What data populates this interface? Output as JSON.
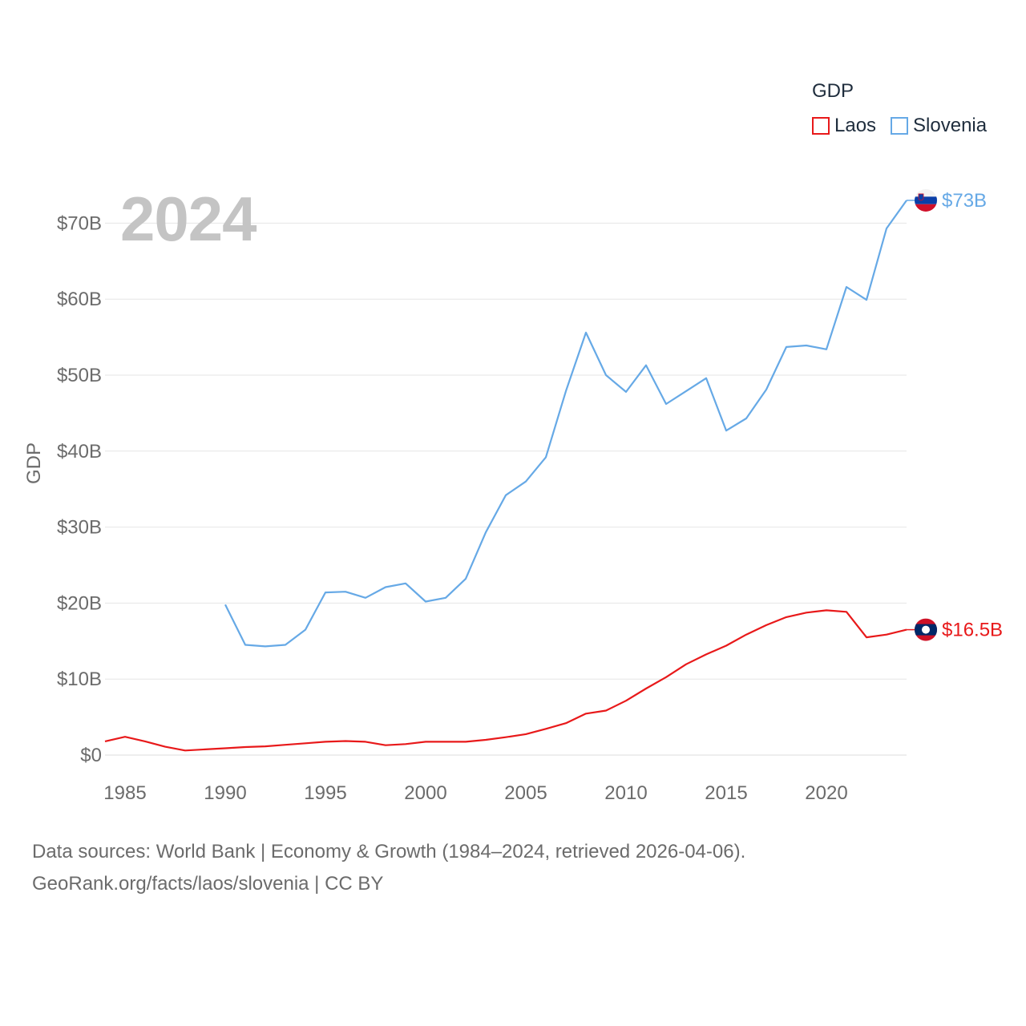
{
  "chart_data": {
    "type": "line",
    "xlabel": "",
    "ylabel": "GDP",
    "xlim": [
      1984,
      2024
    ],
    "ylim": [
      0,
      75
    ],
    "y_unit": "billion USD",
    "x_ticks": [
      1985,
      1990,
      1995,
      2000,
      2005,
      2010,
      2015,
      2020
    ],
    "y_ticks": [
      0,
      10,
      20,
      30,
      40,
      50,
      60,
      70
    ],
    "y_tick_labels": [
      "$0",
      "$10B",
      "$20B",
      "$30B",
      "$40B",
      "$50B",
      "$60B",
      "$70B"
    ],
    "legend_title": "GDP",
    "legend_position": "top-right",
    "grid": true,
    "current_year_label": "2024",
    "series": [
      {
        "name": "Laos",
        "color": "#e8191a",
        "end_label": "$16.5B",
        "x": [
          1984,
          1985,
          1986,
          1987,
          1988,
          1989,
          1990,
          1991,
          1992,
          1993,
          1994,
          1995,
          1996,
          1997,
          1998,
          1999,
          2000,
          2001,
          2002,
          2003,
          2004,
          2005,
          2006,
          2007,
          2008,
          2009,
          2010,
          2011,
          2012,
          2013,
          2014,
          2015,
          2016,
          2017,
          2018,
          2019,
          2020,
          2021,
          2022,
          2023,
          2024
        ],
        "values": [
          1.8,
          2.4,
          1.8,
          1.1,
          0.6,
          0.75,
          0.9,
          1.05,
          1.15,
          1.35,
          1.55,
          1.75,
          1.85,
          1.75,
          1.3,
          1.45,
          1.75,
          1.75,
          1.75,
          2.0,
          2.35,
          2.75,
          3.45,
          4.2,
          5.45,
          5.85,
          7.15,
          8.75,
          10.25,
          11.95,
          13.25,
          14.4,
          15.85,
          17.1,
          18.15,
          18.75,
          19.05,
          18.85,
          15.5,
          15.85,
          16.5
        ]
      },
      {
        "name": "Slovenia",
        "color": "#66a9e6",
        "end_label": "$73B",
        "x": [
          1990,
          1991,
          1992,
          1993,
          1994,
          1995,
          1996,
          1997,
          1998,
          1999,
          2000,
          2001,
          2002,
          2003,
          2004,
          2005,
          2006,
          2007,
          2008,
          2009,
          2010,
          2011,
          2012,
          2013,
          2014,
          2015,
          2016,
          2017,
          2018,
          2019,
          2020,
          2021,
          2022,
          2023,
          2024
        ],
        "values": [
          19.8,
          14.5,
          14.3,
          14.5,
          16.5,
          21.4,
          21.5,
          20.7,
          22.1,
          22.6,
          20.2,
          20.7,
          23.2,
          29.3,
          34.2,
          36.0,
          39.2,
          47.9,
          55.6,
          50.0,
          47.8,
          51.3,
          46.2,
          47.9,
          49.6,
          42.7,
          44.3,
          48.1,
          53.7,
          53.9,
          53.4,
          61.6,
          59.9,
          69.3,
          73.0
        ]
      }
    ]
  },
  "legend": {
    "title": "GDP",
    "items": [
      {
        "label": "Laos",
        "color": "#e8191a"
      },
      {
        "label": "Slovenia",
        "color": "#66a9e6"
      }
    ]
  },
  "footer": {
    "line1": "Data sources: World Bank | Economy & Growth (1984–2024, retrieved 2026-04-06).",
    "line2": "GeoRank.org/facts/laos/slovenia | CC BY"
  }
}
